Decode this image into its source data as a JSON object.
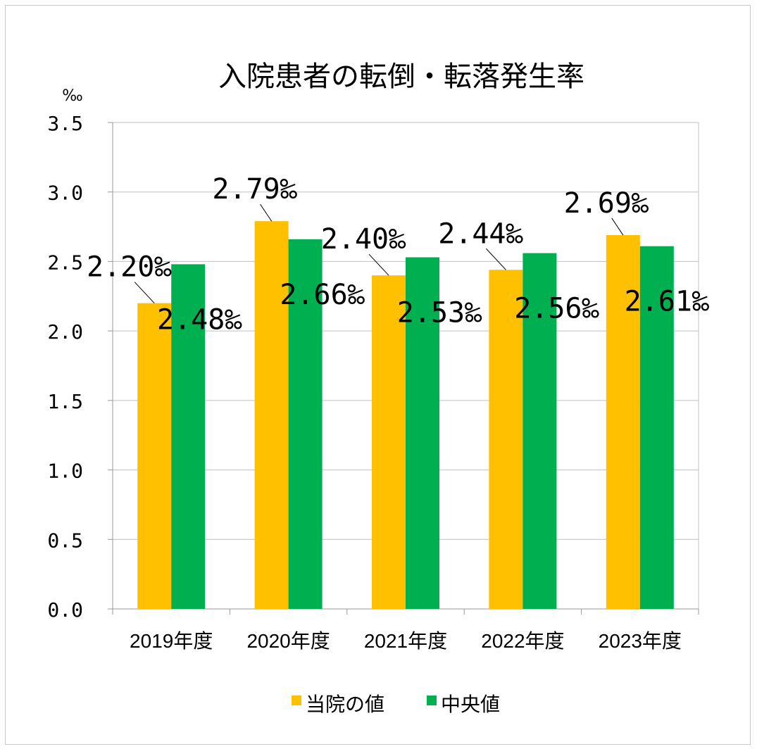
{
  "chart_data": {
    "type": "bar",
    "title": "入院患者の転倒・転落発生率",
    "unit_label": "‰",
    "categories": [
      "2019年度",
      "2020年度",
      "2021年度",
      "2022年度",
      "2023年度"
    ],
    "series": [
      {
        "name": "当院の値",
        "color": "#FFC000",
        "values": [
          2.2,
          2.79,
          2.4,
          2.44,
          2.69
        ],
        "labels": [
          "2.20‰",
          "2.79‰",
          "2.40‰",
          "2.44‰",
          "2.69‰"
        ]
      },
      {
        "name": "中央値",
        "color": "#00B050",
        "values": [
          2.48,
          2.66,
          2.53,
          2.56,
          2.61
        ],
        "labels": [
          "2.48‰",
          "2.66‰",
          "2.53‰",
          "2.56‰",
          "2.61‰"
        ]
      }
    ],
    "ylim": [
      0,
      3.5
    ],
    "yticks": [
      "0.0",
      "0.5",
      "1.0",
      "1.5",
      "2.0",
      "2.5",
      "3.0",
      "3.5"
    ],
    "grid": true,
    "legend_position": "bottom"
  }
}
